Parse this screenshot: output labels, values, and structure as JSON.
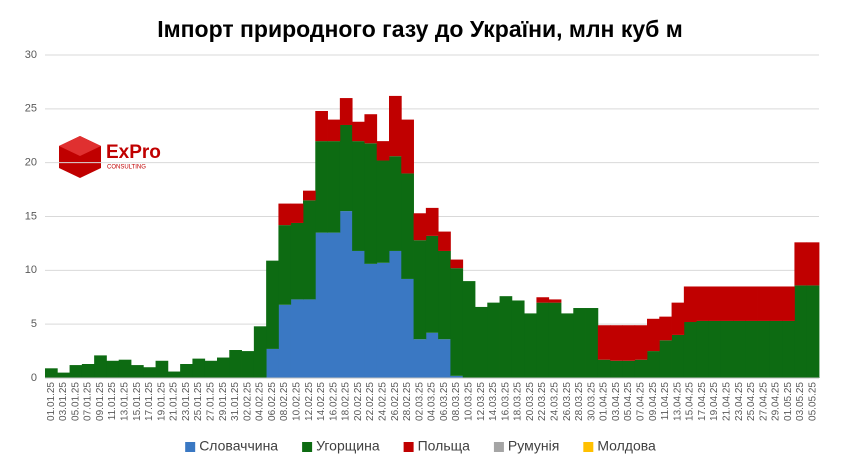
{
  "logo": {
    "name": "ExPro",
    "sub": "CONSULTING"
  },
  "chart_data": {
    "type": "bar",
    "stacked": true,
    "title": "Імпорт природного газу до України, млн куб м",
    "categories": [
      "01.01.25",
      "03.01.25",
      "05.01.25",
      "07.01.25",
      "09.01.25",
      "11.01.25",
      "13.01.25",
      "15.01.25",
      "17.01.25",
      "19.01.25",
      "21.01.25",
      "23.01.25",
      "25.01.25",
      "27.01.25",
      "29.01.25",
      "31.01.25",
      "02.02.25",
      "04.02.25",
      "06.02.25",
      "08.02.25",
      "10.02.25",
      "12.02.25",
      "14.02.25",
      "16.02.25",
      "18.02.25",
      "20.02.25",
      "22.02.25",
      "24.02.25",
      "26.02.25",
      "28.02.25",
      "02.03.25",
      "04.03.25",
      "06.03.25",
      "08.03.25",
      "10.03.25",
      "12.03.25",
      "14.03.25",
      "16.03.25",
      "18.03.25",
      "20.03.25",
      "22.03.25",
      "24.03.25",
      "26.03.25",
      "28.03.25",
      "30.03.25",
      "01.04.25",
      "03.04.25",
      "05.04.25",
      "07.04.25",
      "09.04.25",
      "11.04.25",
      "13.04.25",
      "15.04.25",
      "17.04.25",
      "19.04.25",
      "21.04.25",
      "23.04.25",
      "25.04.25",
      "27.04.25",
      "29.04.25",
      "01.05.25",
      "03.05.25",
      "05.05.25"
    ],
    "series": [
      {
        "name": "Словаччина",
        "color": "#3a78c3",
        "values": [
          0,
          0,
          0,
          0,
          0,
          0,
          0,
          0,
          0,
          0,
          0,
          0,
          0,
          0,
          0,
          0,
          0,
          0,
          2.7,
          6.8,
          7.3,
          7.3,
          13.5,
          13.5,
          15.5,
          11.8,
          10.6,
          10.7,
          11.8,
          9.2,
          3.6,
          4.2,
          3.6,
          0.2,
          0,
          0,
          0,
          0,
          0,
          0,
          0,
          0,
          0,
          0,
          0,
          0,
          0,
          0,
          0,
          0,
          0,
          0,
          0,
          0,
          0,
          0,
          0,
          0,
          0,
          0,
          0,
          0,
          0
        ]
      },
      {
        "name": "Угорщина",
        "color": "#0d6b12",
        "values": [
          0.9,
          0.5,
          1.2,
          1.3,
          2.1,
          1.6,
          1.7,
          1.2,
          1.0,
          1.6,
          0.6,
          1.3,
          1.8,
          1.6,
          1.9,
          2.6,
          2.5,
          4.8,
          8.2,
          7.4,
          7.1,
          9.2,
          8.5,
          8.5,
          8.0,
          10.2,
          11.2,
          9.5,
          8.8,
          9.8,
          9.2,
          9.0,
          8.2,
          10.0,
          9.0,
          6.6,
          7.0,
          7.6,
          7.2,
          6.0,
          7.0,
          7.0,
          6.0,
          6.5,
          6.5,
          1.7,
          1.6,
          1.6,
          1.7,
          2.5,
          3.5,
          4.0,
          5.2,
          5.3,
          5.3,
          5.3,
          5.3,
          5.3,
          5.3,
          5.3,
          5.3,
          8.6,
          8.6
        ]
      },
      {
        "name": "Польща",
        "color": "#c00000",
        "values": [
          0,
          0,
          0,
          0,
          0,
          0,
          0,
          0,
          0,
          0,
          0,
          0,
          0,
          0,
          0,
          0,
          0,
          0,
          0,
          2.0,
          1.8,
          0.9,
          2.8,
          2.0,
          2.5,
          1.8,
          2.7,
          1.8,
          5.6,
          5.0,
          2.5,
          2.6,
          1.8,
          0.8,
          0,
          0,
          0,
          0,
          0,
          0,
          0.5,
          0.3,
          0,
          0,
          0,
          3.2,
          3.3,
          3.3,
          3.2,
          3.0,
          2.2,
          3.0,
          3.3,
          3.2,
          3.2,
          3.2,
          3.2,
          3.2,
          3.2,
          3.2,
          3.2,
          4.0,
          4.0
        ]
      },
      {
        "name": "Румунія",
        "color": "#a5a5a5",
        "values": [
          0,
          0,
          0,
          0,
          0,
          0,
          0,
          0,
          0,
          0,
          0,
          0,
          0,
          0,
          0,
          0,
          0,
          0,
          0,
          0,
          0,
          0,
          0,
          0,
          0,
          0,
          0,
          0,
          0,
          0,
          0,
          0,
          0,
          0,
          0,
          0,
          0,
          0,
          0,
          0,
          0,
          0,
          0,
          0,
          0,
          0,
          0,
          0,
          0,
          0,
          0,
          0,
          0,
          0,
          0,
          0,
          0,
          0,
          0,
          0,
          0,
          0,
          0
        ]
      },
      {
        "name": "Молдова",
        "color": "#ffc000",
        "values": [
          0,
          0,
          0,
          0,
          0,
          0,
          0,
          0,
          0,
          0,
          0,
          0,
          0,
          0,
          0,
          0,
          0,
          0,
          0,
          0,
          0,
          0,
          0,
          0,
          0,
          0,
          0,
          0,
          0,
          0,
          0,
          0,
          0,
          0,
          0,
          0,
          0,
          0,
          0,
          0,
          0,
          0,
          0,
          0,
          0,
          0,
          0,
          0,
          0,
          0,
          0,
          0,
          0,
          0,
          0,
          0,
          0,
          0,
          0,
          0,
          0,
          0,
          0
        ]
      }
    ],
    "ylim": [
      0,
      30
    ],
    "yticks": [
      0,
      5,
      10,
      15,
      20,
      25,
      30
    ],
    "grid": true,
    "legend": "bottom"
  }
}
